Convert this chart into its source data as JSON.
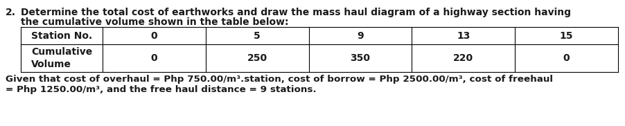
{
  "item_number": "2.",
  "question_line1": "Determine the total cost of earthworks and draw the mass haul diagram of a highway section having",
  "question_line2": "the cumulative volume shown in the table below:",
  "table_header_label": "Station No.",
  "table_headers": [
    "0",
    "5",
    "9",
    "13",
    "15"
  ],
  "table_row_label": "Cumulative\nVolume",
  "table_row_values": [
    "0",
    "250",
    "350",
    "220",
    "0"
  ],
  "given_line1": "Given that cost of overhaul = Php 750.00/m³.station, cost of borrow = Php 2500.00/m³, cost of freehaul",
  "given_line2": "= Php 1250.00/m³, and the free haul distance = 9 stations.",
  "bg_color": "#ffffff",
  "text_color": "#1a1a1a",
  "border_color": "#000000",
  "font_size": 10.0,
  "font_weight": "bold",
  "font_family": "DejaVu Sans"
}
